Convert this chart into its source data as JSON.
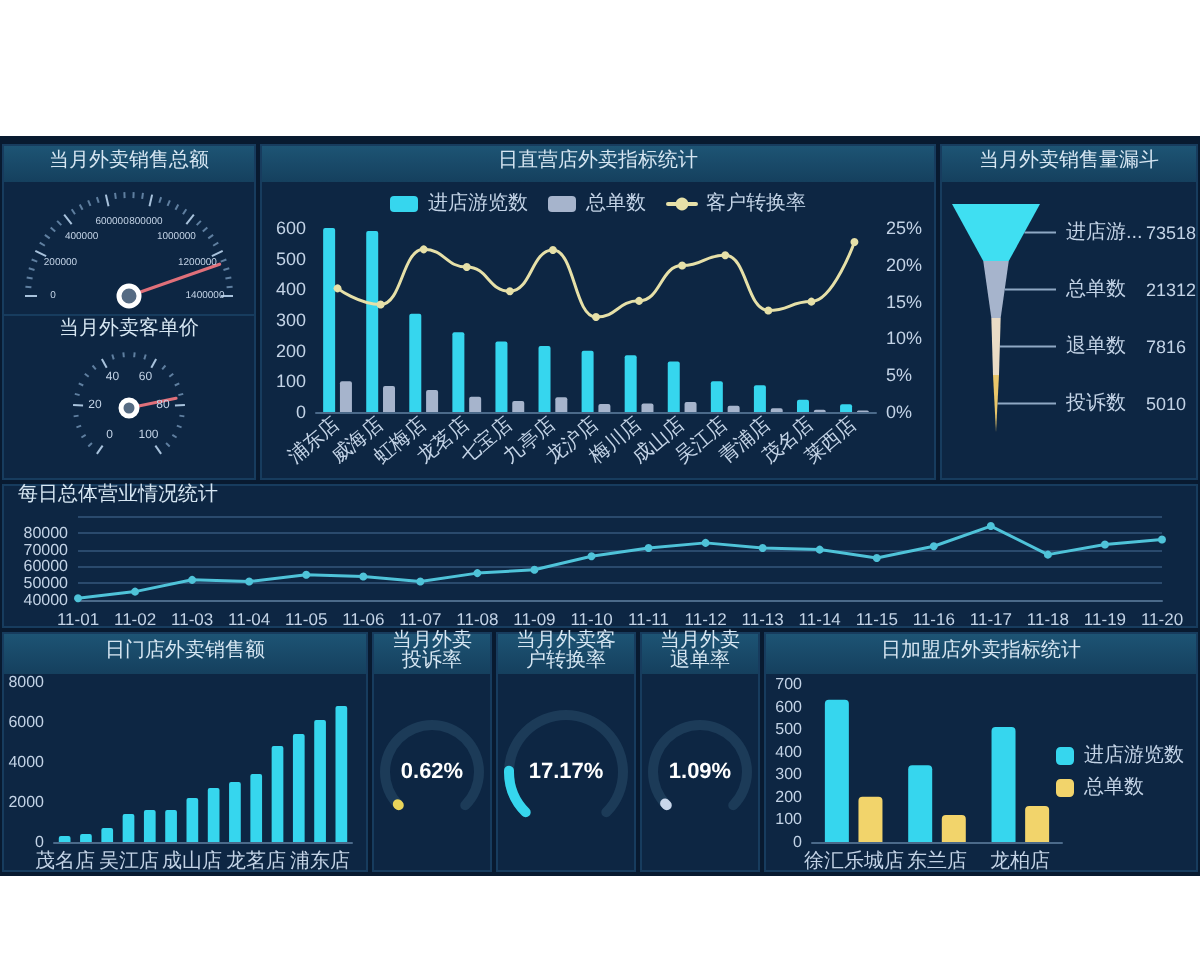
{
  "chart_data": [
    {
      "type": "other",
      "title": "当月外卖销售总额",
      "annotations": [
        "0",
        "200000",
        "400000",
        "600000",
        "800000",
        "1000000",
        "1200000",
        "1400000"
      ]
    },
    {
      "type": "other",
      "title": "当月外卖客单价",
      "annotations": [
        "0",
        "20",
        "40",
        "60",
        "80",
        "100"
      ]
    },
    {
      "type": "bar",
      "title": "日直营店外卖指标统计",
      "categories": [
        "浦东店",
        "威海店",
        "虹梅店",
        "龙茗店",
        "七宝店",
        "九亭店",
        "龙沪店",
        "梅川店",
        "成山店",
        "吴江店",
        "青浦店",
        "茂名店",
        "莱西店"
      ],
      "series": [
        {
          "name": "进店游览数",
          "color": "#36d6ee",
          "values": [
            600,
            590,
            320,
            260,
            230,
            215,
            200,
            185,
            165,
            100,
            87,
            40,
            25
          ]
        },
        {
          "name": "总单数",
          "color": "#a6b4cc",
          "values": [
            100,
            85,
            72,
            50,
            36,
            48,
            26,
            28,
            33,
            20,
            12,
            7,
            5
          ]
        },
        {
          "name": "客户转换率",
          "type": "line",
          "axis": "y2",
          "color": "#e6e0a8",
          "values": [
            16.8,
            14.6,
            22.1,
            19.7,
            16.4,
            22.0,
            12.9,
            15.1,
            19.9,
            21.3,
            13.8,
            15.0,
            23.1
          ]
        }
      ],
      "ylim": [
        0,
        600
      ],
      "yticks": [
        0,
        100,
        200,
        300,
        400,
        500,
        600
      ],
      "y2lim": [
        0,
        25
      ],
      "y2ticks": [
        {
          "value": 0,
          "label": "0%"
        },
        {
          "value": 5,
          "label": "5%"
        },
        {
          "value": 10,
          "label": "10%"
        },
        {
          "value": 15,
          "label": "15%"
        },
        {
          "value": 20,
          "label": "20%"
        },
        {
          "value": 25,
          "label": "25%"
        }
      ],
      "legend": "top",
      "marker": "circle"
    },
    {
      "type": "other",
      "title": "当月外卖销售量漏斗",
      "categories": [
        "进店游...",
        "总单数",
        "退单数",
        "投诉数"
      ],
      "values": [
        73518,
        21312,
        7816,
        5010
      ],
      "data_labels": true
    },
    {
      "type": "line",
      "title": "每日总体营业情况统计",
      "categories": [
        "11-01",
        "11-02",
        "11-03",
        "11-04",
        "11-05",
        "11-06",
        "11-07",
        "11-08",
        "11-09",
        "11-10",
        "11-11",
        "11-12",
        "11-13",
        "11-14",
        "11-15",
        "11-16",
        "11-17",
        "11-18",
        "11-19",
        "11-20"
      ],
      "values": [
        41000,
        45000,
        52000,
        51000,
        55000,
        54000,
        51000,
        56000,
        58000,
        66000,
        71000,
        74000,
        71000,
        70000,
        65000,
        72000,
        84000,
        67000,
        73000,
        76000
      ],
      "color": "#4fc3d9",
      "ylim": [
        40000,
        90000
      ],
      "yticks": [
        40000,
        50000,
        60000,
        70000,
        80000,
        {
          "value": 90000,
          "label": null
        }
      ],
      "grid": "y",
      "marker": "circle"
    },
    {
      "type": "bar",
      "title": "日门店外卖销售额",
      "categories": [
        "茂名店",
        null,
        null,
        "吴江店",
        null,
        null,
        "成山店",
        null,
        null,
        "龙茗店",
        null,
        null,
        "浦东店",
        null
      ],
      "values": [
        300,
        400,
        700,
        1400,
        1600,
        1600,
        2200,
        2700,
        3000,
        3400,
        4800,
        5400,
        6100,
        6800
      ],
      "color": "#36d6ee",
      "ylim": [
        0,
        8000
      ],
      "yticks": [
        0,
        2000,
        4000,
        6000,
        8000
      ]
    },
    {
      "type": "other",
      "title": "当月外卖投诉率",
      "values": [
        0.62
      ],
      "value_labels": [
        "0.62%"
      ]
    },
    {
      "type": "other",
      "title": "当月外卖客户转换率",
      "values": [
        17.17
      ],
      "value_labels": [
        "17.17%"
      ]
    },
    {
      "type": "other",
      "title": "当月外卖退单率",
      "values": [
        1.09
      ],
      "value_labels": [
        "1.09%"
      ]
    },
    {
      "type": "bar",
      "title": "日加盟店外卖指标统计",
      "categories": [
        "徐汇乐城店",
        "东兰店",
        "龙柏店"
      ],
      "series": [
        {
          "name": "进店游览数",
          "color": "#36d6ee",
          "values": [
            630,
            340,
            510
          ]
        },
        {
          "name": "总单数",
          "color": "#f2d46b",
          "values": [
            200,
            120,
            160
          ]
        }
      ],
      "ylim": [
        0,
        700
      ],
      "yticks": [
        0,
        100,
        200,
        300,
        400,
        500,
        600,
        700
      ],
      "legend": "right"
    }
  ]
}
